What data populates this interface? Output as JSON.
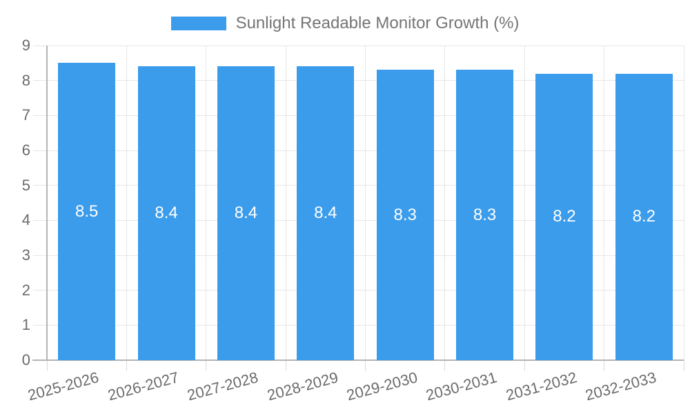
{
  "legend": {
    "label": "Sunlight Readable Monitor Growth (%)",
    "position": "top-center"
  },
  "chart_data": {
    "type": "bar",
    "title": "Sunlight Readable Monitor Growth (%)",
    "categories": [
      "2025-2026",
      "2026-2027",
      "2027-2028",
      "2028-2029",
      "2029-2030",
      "2030-2031",
      "2031-2032",
      "2032-2033"
    ],
    "values": [
      8.5,
      8.4,
      8.4,
      8.4,
      8.3,
      8.3,
      8.2,
      8.2
    ],
    "value_labels": [
      "8.5",
      "8.4",
      "8.4",
      "8.4",
      "8.3",
      "8.3",
      "8.2",
      "8.2"
    ],
    "xlabel": "",
    "ylabel": "",
    "ylim": [
      0,
      9
    ],
    "y_ticks": [
      0,
      1,
      2,
      3,
      4,
      5,
      6,
      7,
      8,
      9
    ],
    "grid": true,
    "legend_position": "top",
    "colors": {
      "bar": "#3b9ceb",
      "bar_value_text": "#ffffff",
      "gridline": "#e6e6e6",
      "tick": "#d9d9d9",
      "axis_line": "#b3b3b3",
      "axis_label_text": "#6b6b6b",
      "legend_text": "#757575",
      "background": "#ffffff"
    }
  }
}
